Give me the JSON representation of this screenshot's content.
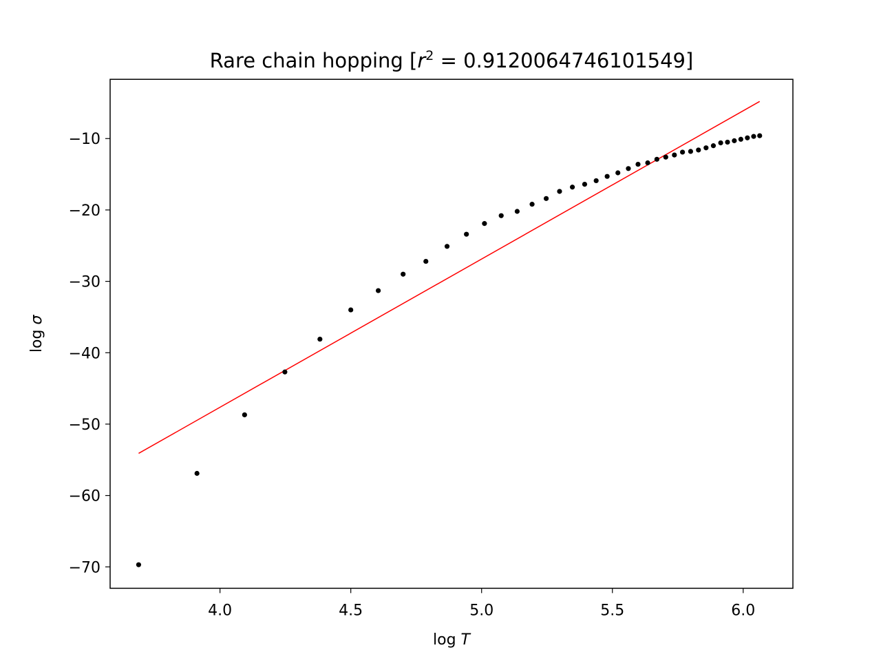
{
  "chart_data": {
    "type": "scatter",
    "title_prefix": "Rare chain hopping [",
    "title_r": "r",
    "title_exp": "2",
    "title_suffix": " =  0.9120064746101549]",
    "xlabel_prefix": "log ",
    "xlabel_var": "T",
    "ylabel_prefix": "log ",
    "ylabel_var": "σ",
    "xlim": [
      3.58,
      6.19
    ],
    "ylim": [
      -73.0,
      -1.7
    ],
    "xticks": [
      4.0,
      4.5,
      5.0,
      5.5,
      6.0
    ],
    "xtick_labels": [
      "4.0",
      "4.5",
      "5.0",
      "5.5",
      "6.0"
    ],
    "yticks": [
      -10,
      -20,
      -30,
      -40,
      -50,
      -60,
      -70
    ],
    "ytick_labels": [
      "−10",
      "−20",
      "−30",
      "−40",
      "−50",
      "−60",
      "−70"
    ],
    "grid": false,
    "series": [
      {
        "kind": "points",
        "color": "#000000",
        "x": [
          3.689,
          3.912,
          4.094,
          4.248,
          4.382,
          4.5,
          4.605,
          4.7,
          4.787,
          4.868,
          4.942,
          5.011,
          5.075,
          5.136,
          5.193,
          5.247,
          5.298,
          5.347,
          5.394,
          5.438,
          5.48,
          5.521,
          5.561,
          5.598,
          5.635,
          5.67,
          5.704,
          5.737,
          5.768,
          5.799,
          5.829,
          5.858,
          5.886,
          5.914,
          5.94,
          5.966,
          5.991,
          6.016,
          6.04,
          6.063
        ],
        "y": [
          -69.7,
          -56.9,
          -48.7,
          -42.7,
          -38.1,
          -34.0,
          -31.3,
          -29.0,
          -27.2,
          -25.1,
          -23.4,
          -21.9,
          -20.8,
          -20.2,
          -19.2,
          -18.4,
          -17.4,
          -16.8,
          -16.4,
          -15.9,
          -15.3,
          -14.8,
          -14.2,
          -13.6,
          -13.4,
          -12.9,
          -12.6,
          -12.3,
          -11.9,
          -11.8,
          -11.6,
          -11.3,
          -11.0,
          -10.6,
          -10.5,
          -10.3,
          -10.1,
          -9.9,
          -9.7,
          -9.6
        ]
      },
      {
        "kind": "fit-line",
        "color": "#ff0000",
        "x": [
          3.689,
          6.063
        ],
        "y": [
          -54.1,
          -4.8
        ]
      }
    ]
  }
}
